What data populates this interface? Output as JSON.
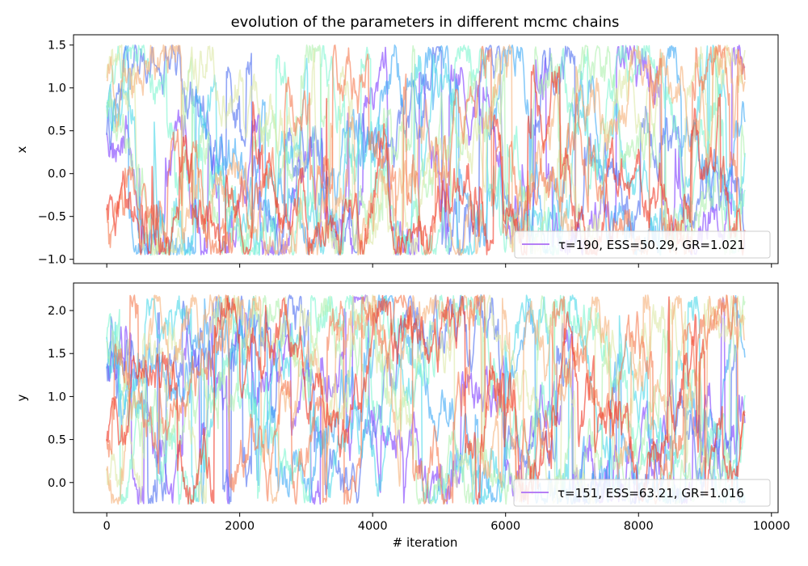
{
  "chart_data": {
    "title": "evolution of the parameters in different mcmc chains",
    "type": "line",
    "xlabel": "# iteration",
    "xlim": [
      -500,
      10100
    ],
    "xticks": [
      0,
      2000,
      4000,
      6000,
      8000,
      10000
    ],
    "xtick_labels": [
      "0",
      "2000",
      "4000",
      "6000",
      "8000",
      "10000"
    ],
    "n_chains": 10,
    "chain_colors": [
      "#7f3fff",
      "#4f6ff0",
      "#3fa9f5",
      "#4dd8e8",
      "#7ff5d0",
      "#b0f0b0",
      "#dde8a8",
      "#f5b27a",
      "#f57a50",
      "#f03a28"
    ],
    "panels": [
      {
        "ylabel": "x",
        "ylim": [
          -1.05,
          1.62
        ],
        "yticks": [
          -1.0,
          -0.5,
          0.0,
          0.5,
          1.0,
          1.5
        ],
        "ytick_labels": [
          "−1.0",
          "−0.5",
          "0.0",
          "0.5",
          "1.0",
          "1.5"
        ],
        "legend": "τ=190, ESS=50.29, GR=1.021",
        "legend_loc": "lower-right",
        "bounds": [
          -0.95,
          1.5
        ],
        "dips": [
          [
            600,
            -0.9
          ],
          [
            3300,
            -0.7
          ],
          [
            4400,
            -0.8
          ],
          [
            6100,
            -0.65
          ],
          [
            8500,
            -0.65
          ]
        ]
      },
      {
        "ylabel": "y",
        "ylim": [
          -0.35,
          2.32
        ],
        "yticks": [
          0.0,
          0.5,
          1.0,
          1.5,
          2.0
        ],
        "ytick_labels": [
          "0.0",
          "0.5",
          "1.0",
          "1.5",
          "2.0"
        ],
        "legend": "τ=151, ESS=63.21, GR=1.016",
        "legend_loc": "lower-right",
        "bounds": [
          -0.25,
          2.18
        ],
        "dips": []
      }
    ],
    "n_iterations": 9600
  }
}
